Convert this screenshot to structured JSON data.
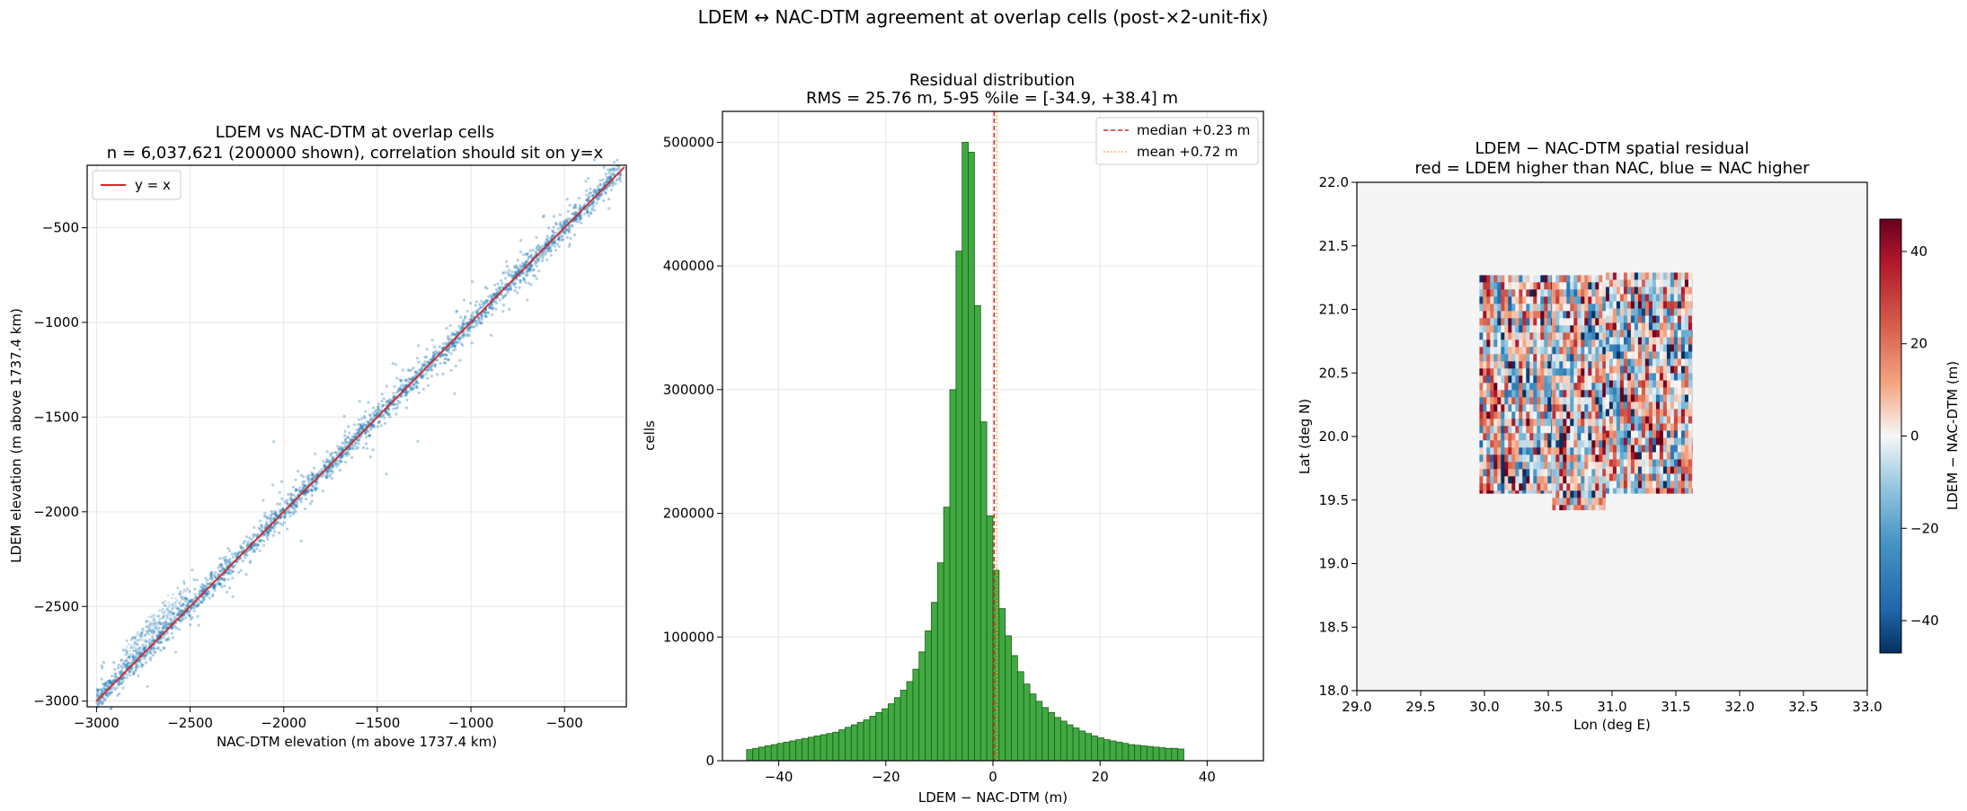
{
  "suptitle": "LDEM ↔ NAC-DTM agreement at overlap cells (post-×2-unit-fix)",
  "colors": {
    "scatter": "#1f77b4",
    "identity_line": "#d62728",
    "hist_fill": "#2ca02c",
    "hist_edge": "#1b5e1b",
    "median_line": "#d62728",
    "mean_line": "#ff9f1c",
    "map_background": "#f5f5f5"
  },
  "chart_data": [
    {
      "type": "scatter",
      "title_line1": "LDEM vs NAC-DTM at overlap cells",
      "title_line2": "n = 6,037,621 (200000 shown), correlation should sit on y=x",
      "xlabel": "NAC-DTM elevation (m above 1737.4 km)",
      "ylabel": "LDEM elevation (m above 1737.4 km)",
      "xlim": [
        -3050,
        -170
      ],
      "ylim": [
        -3030,
        -170
      ],
      "xticks": [
        -3000,
        -2500,
        -2000,
        -1500,
        -1000,
        -500
      ],
      "yticks": [
        -3000,
        -2500,
        -2000,
        -1500,
        -1000,
        -500
      ],
      "xtick_labels": [
        "−3000",
        "−2500",
        "−2000",
        "−1500",
        "−1000",
        "−500"
      ],
      "ytick_labels": [
        "−3000",
        "−2500",
        "−2000",
        "−1500",
        "−1000",
        "−500"
      ],
      "identity_line": [
        [
          -3000,
          -3000
        ],
        [
          -180,
          -180
        ]
      ],
      "point_range": [
        -3000,
        -200
      ],
      "legend": [
        "y = x"
      ],
      "legend_loc": "upper-left",
      "grid": true
    },
    {
      "type": "bar",
      "title_line1": "Residual distribution",
      "title_line2": "RMS = 25.76 m,  5-95 %ile = [-34.9, +38.4] m",
      "xlabel": "LDEM − NAC-DTM (m)",
      "ylabel": "cells",
      "xlim": [
        -50.5,
        50.5
      ],
      "ylim": [
        0,
        525000
      ],
      "xticks": [
        -40,
        -20,
        0,
        20,
        40
      ],
      "xtick_labels": [
        "−40",
        "−20",
        "0",
        "20",
        "40"
      ],
      "yticks": [
        0,
        100000,
        200000,
        300000,
        400000,
        500000
      ],
      "ytick_labels": [
        "0",
        "100000",
        "200000",
        "300000",
        "400000",
        "500000"
      ],
      "bin_start": -46,
      "bin_width": 1.15,
      "values": [
        9000,
        10000,
        11000,
        12000,
        13000,
        14000,
        15000,
        16000,
        17000,
        18000,
        19000,
        20000,
        21000,
        22000,
        23000,
        25000,
        27000,
        29000,
        31000,
        33000,
        36000,
        39000,
        42000,
        46000,
        51000,
        57000,
        64000,
        74000,
        88000,
        105000,
        128000,
        160000,
        205000,
        300000,
        412000,
        500000,
        492000,
        368000,
        274000,
        198000,
        154000,
        123000,
        101000,
        85000,
        72000,
        62000,
        54000,
        48000,
        43000,
        39000,
        35000,
        32000,
        29000,
        26500,
        24000,
        22000,
        20000,
        18500,
        17000,
        16000,
        15000,
        14000,
        13000,
        12500,
        12000,
        11500,
        11000,
        10500,
        10000,
        10000,
        9500
      ],
      "median": 0.23,
      "mean": 0.72,
      "legend": [
        "median +0.23 m",
        "mean +0.72 m"
      ],
      "legend_loc": "upper-right",
      "grid": true
    },
    {
      "type": "heatmap",
      "title_line1": "LDEM − NAC-DTM spatial residual",
      "title_line2": "red = LDEM higher than NAC, blue = NAC higher",
      "xlabel": "Lon (deg E)",
      "ylabel": "Lat (deg N)",
      "xlim": [
        29.0,
        33.0
      ],
      "ylim": [
        18.0,
        22.0
      ],
      "xticks": [
        29.0,
        29.5,
        30.0,
        30.5,
        31.0,
        31.5,
        32.0,
        32.5,
        33.0
      ],
      "xtick_labels": [
        "29.0",
        "29.5",
        "30.0",
        "30.5",
        "31.0",
        "31.5",
        "32.0",
        "32.5",
        "33.0"
      ],
      "yticks": [
        18.0,
        18.5,
        19.0,
        19.5,
        20.0,
        20.5,
        21.0,
        21.5,
        22.0
      ],
      "ytick_labels": [
        "18.0",
        "18.5",
        "19.0",
        "19.5",
        "20.0",
        "20.5",
        "21.0",
        "21.5",
        "22.0"
      ],
      "strips": [
        {
          "lon": [
            29.96,
            30.53
          ],
          "lat": [
            19.55,
            21.27
          ]
        },
        {
          "lon": [
            30.53,
            30.95
          ],
          "lat": [
            19.42,
            21.27
          ]
        },
        {
          "lon": [
            30.95,
            31.63
          ],
          "lat": [
            19.55,
            21.29
          ]
        }
      ],
      "colorbar_label": "LDEM − NAC-DTM (m)",
      "colorbar_range": [
        -47,
        47
      ],
      "colorbar_ticks": [
        -40,
        -20,
        0,
        20,
        40
      ],
      "colorbar_tick_labels": [
        "−40",
        "−20",
        "0",
        "20",
        "40"
      ],
      "colormap": "RdBu_r"
    }
  ]
}
